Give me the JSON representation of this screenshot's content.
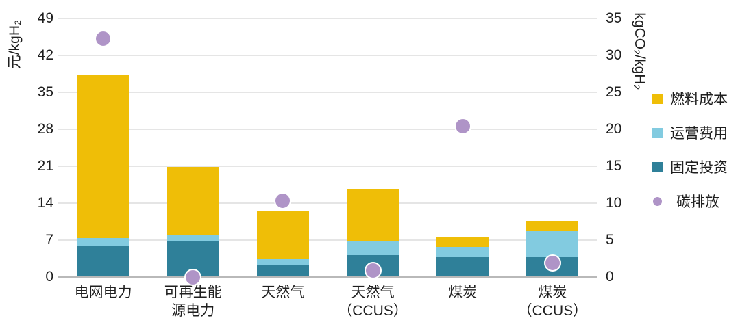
{
  "chart_data": {
    "type": "bar",
    "subtype": "stacked-column-with-scatter-overlay",
    "title": "",
    "categories": [
      "电网电力",
      "可再生能\n源电力",
      "天然气",
      "天然气\n（CCUS）",
      "煤炭",
      "煤炭\n（CCUS）"
    ],
    "series": [
      {
        "name": "固定投资",
        "type": "bar-segment",
        "axis": "left",
        "color": "#2F8099",
        "values": [
          6.0,
          6.8,
          2.2,
          4.1,
          3.8,
          3.8
        ]
      },
      {
        "name": "运营费用",
        "type": "bar-segment",
        "axis": "left",
        "color": "#82CBE0",
        "values": [
          1.4,
          1.2,
          1.3,
          2.7,
          1.9,
          4.9
        ]
      },
      {
        "name": "燃料成本",
        "type": "bar-segment",
        "axis": "left",
        "color": "#EFBE07",
        "values": [
          31.0,
          12.9,
          8.9,
          9.9,
          1.8,
          1.9
        ]
      },
      {
        "name": "碳排放",
        "type": "scatter",
        "axis": "right",
        "color": "#AF94C7",
        "values": [
          32.3,
          0,
          10.3,
          0.9,
          20.4,
          1.9
        ]
      }
    ],
    "stack_totals_left_axis": [
      38.4,
      20.9,
      12.4,
      16.7,
      7.5,
      10.6
    ],
    "left_axis": {
      "label": "元/kgH₂",
      "min": 0,
      "max": 49,
      "ticks": [
        0,
        7,
        14,
        21,
        28,
        35,
        42,
        49
      ]
    },
    "right_axis": {
      "label": "kgCO₂/kgH₂",
      "min": 0,
      "max": 35,
      "ticks": [
        0,
        5,
        10,
        15,
        20,
        25,
        30,
        35
      ]
    },
    "legend": [
      {
        "label": "燃料成本",
        "marker": "square",
        "color": "#EFBE07"
      },
      {
        "label": "运营费用",
        "marker": "square",
        "color": "#82CBE0"
      },
      {
        "label": "固定投资",
        "marker": "square",
        "color": "#2F8099"
      },
      {
        "label": "碳排放",
        "marker": "circle",
        "color": "#AF94C7"
      }
    ],
    "grid": {
      "on": true,
      "color": "#E5E5E5",
      "zero_line_color": "#B9B9B9"
    },
    "legend_position": "right"
  }
}
